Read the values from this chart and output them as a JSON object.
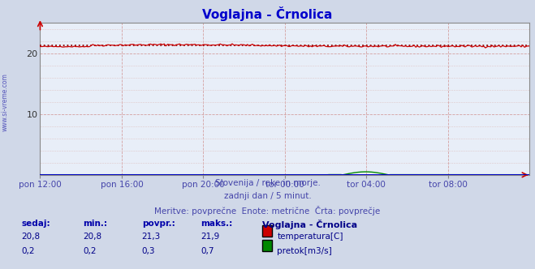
{
  "title": "Voglajna - Črnolica",
  "title_color": "#0000cc",
  "bg_color": "#d0d8e8",
  "plot_bg_color": "#e8eef8",
  "xlabel_color": "#4444aa",
  "xticklabels": [
    "pon 12:00",
    "pon 16:00",
    "pon 20:00",
    "tor 00:00",
    "tor 04:00",
    "tor 08:00"
  ],
  "xtick_positions": [
    0,
    48,
    96,
    144,
    192,
    240
  ],
  "n_points": 289,
  "temp_avg": 21.3,
  "temp_color": "#cc0000",
  "flow_color": "#008800",
  "blue_color": "#0000cc",
  "avg_line_color": "#880000",
  "watermark": "www.si-vreme.com",
  "footer_line1": "Slovenija / reke in morje.",
  "footer_line2": "zadnji dan / 5 minut.",
  "footer_line3": "Meritve: povprečne  Enote: metrične  Črta: povprečje",
  "footer_color": "#4444aa",
  "legend_title": "Voglajna - Črnolica",
  "legend_title_color": "#000088",
  "table_headers": [
    "sedaj:",
    "min.:",
    "povpr.:",
    "maks.:"
  ],
  "table_temp": [
    "20,8",
    "20,8",
    "21,3",
    "21,9"
  ],
  "table_flow": [
    "0,2",
    "0,2",
    "0,3",
    "0,7"
  ],
  "table_color": "#000088",
  "table_header_color": "#0000aa",
  "ymax": 25,
  "ymin": 0,
  "grid_color": "#d4a0a0",
  "minor_grid_color": "#e0c8c8"
}
